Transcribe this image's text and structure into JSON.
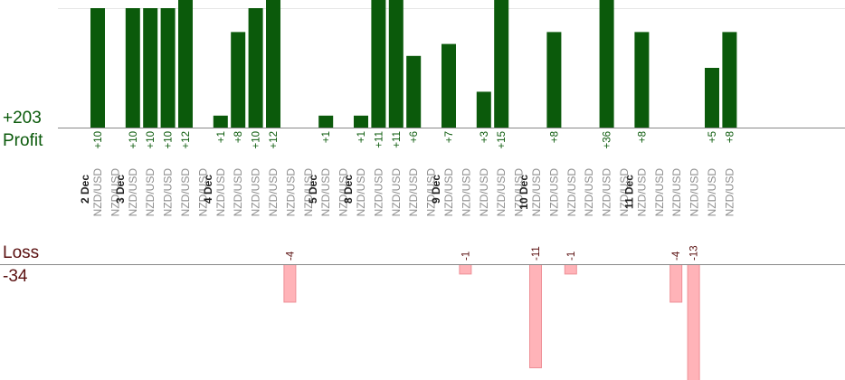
{
  "summary": {
    "profit_total": "+203",
    "profit_label": "Profit",
    "loss_label": "Loss",
    "loss_total": "-34"
  },
  "colors": {
    "profit_bar": "#0b5a0b",
    "profit_text": "#0b5a0b",
    "loss_bar_fill": "#ffb3b8",
    "loss_bar_stroke": "#ee8f96",
    "loss_text": "#5a1010",
    "symbol_text": "#8c8c8c",
    "date_text": "#222222",
    "axis": "#888888",
    "grid": "#e6e6e6"
  },
  "chart_data": {
    "type": "bar",
    "title": "",
    "symbol": "NZD/USD",
    "profit_axis_top": 10,
    "loss_axis_bottom": -11,
    "trades": [
      {
        "date": "2 Dec",
        "symbol": "NZD/USD",
        "profit": 10,
        "profit_label": "+10"
      },
      {
        "date": "",
        "symbol": "NZD/USD"
      },
      {
        "date": "3 Dec",
        "symbol": "NZD/USD",
        "profit": 10,
        "profit_label": "+10"
      },
      {
        "date": "",
        "symbol": "NZD/USD",
        "profit": 10,
        "profit_label": "+10"
      },
      {
        "date": "",
        "symbol": "NZD/USD",
        "profit": 10,
        "profit_label": "+10"
      },
      {
        "date": "",
        "symbol": "NZD/USD",
        "profit": 12,
        "profit_label": "+12"
      },
      {
        "date": "",
        "symbol": "NZD/USD"
      },
      {
        "date": "4 Dec",
        "symbol": "NZD/USD",
        "profit": 1,
        "profit_label": "+1"
      },
      {
        "date": "",
        "symbol": "NZD/USD",
        "profit": 8,
        "profit_label": "+8"
      },
      {
        "date": "",
        "symbol": "NZD/USD",
        "profit": 10,
        "profit_label": "+10"
      },
      {
        "date": "",
        "symbol": "NZD/USD",
        "profit": 12,
        "profit_label": "+12"
      },
      {
        "date": "",
        "symbol": "NZD/USD",
        "loss": -4,
        "loss_label": "-4"
      },
      {
        "date": "",
        "symbol": "NZD/USD"
      },
      {
        "date": "5 Dec",
        "symbol": "NZD/USD",
        "profit": 1,
        "profit_label": "+1"
      },
      {
        "date": "",
        "symbol": "NZD/USD"
      },
      {
        "date": "8 Dec",
        "symbol": "NZD/USD",
        "profit": 1,
        "profit_label": "+1"
      },
      {
        "date": "",
        "symbol": "NZD/USD",
        "profit": 11,
        "profit_label": "+11"
      },
      {
        "date": "",
        "symbol": "NZD/USD",
        "profit": 11,
        "profit_label": "+11"
      },
      {
        "date": "",
        "symbol": "NZD/USD",
        "profit": 6,
        "profit_label": "+6"
      },
      {
        "date": "",
        "symbol": "NZD/USD"
      },
      {
        "date": "9 Dec",
        "symbol": "NZD/USD",
        "profit": 7,
        "profit_label": "+7"
      },
      {
        "date": "",
        "symbol": "NZD/USD",
        "loss": -1,
        "loss_label": "-1"
      },
      {
        "date": "",
        "symbol": "NZD/USD",
        "profit": 3,
        "profit_label": "+3"
      },
      {
        "date": "",
        "symbol": "NZD/USD",
        "profit": 15,
        "profit_label": "+15"
      },
      {
        "date": "",
        "symbol": "NZD/USD"
      },
      {
        "date": "10 Dec",
        "symbol": "NZD/USD",
        "loss": -11,
        "loss_label": "-11"
      },
      {
        "date": "",
        "symbol": "NZD/USD",
        "profit": 8,
        "profit_label": "+8"
      },
      {
        "date": "",
        "symbol": "NZD/USD",
        "loss": -1,
        "loss_label": "-1"
      },
      {
        "date": "",
        "symbol": "NZD/USD"
      },
      {
        "date": "",
        "symbol": "NZD/USD",
        "profit": 36,
        "profit_label": "+36"
      },
      {
        "date": "",
        "symbol": "NZD/USD"
      },
      {
        "date": "11 Dec",
        "symbol": "NZD/USD",
        "profit": 8,
        "profit_label": "+8"
      },
      {
        "date": "",
        "symbol": "NZD/USD"
      },
      {
        "date": "",
        "symbol": "NZD/USD",
        "loss": -4,
        "loss_label": "-4"
      },
      {
        "date": "",
        "symbol": "NZD/USD",
        "loss": -13,
        "loss_label": "-13"
      },
      {
        "date": "",
        "symbol": "NZD/USD",
        "profit": 5,
        "profit_label": "+5"
      },
      {
        "date": "",
        "symbol": "NZD/USD",
        "profit": 8,
        "profit_label": "+8"
      }
    ]
  }
}
